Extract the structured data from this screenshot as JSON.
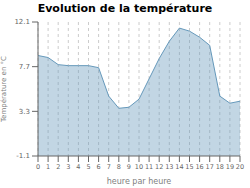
{
  "chart_data": {
    "type": "area",
    "title": "Evolution de la température",
    "xlabel": "heure par heure",
    "ylabel": "Température en °C",
    "x": [
      0,
      1,
      2,
      3,
      4,
      5,
      6,
      7,
      8,
      9,
      10,
      11,
      12,
      13,
      14,
      15,
      16,
      17,
      18,
      19,
      20
    ],
    "values": [
      8.8,
      8.6,
      7.9,
      7.8,
      7.8,
      7.8,
      7.6,
      4.8,
      3.6,
      3.7,
      4.5,
      6.5,
      8.5,
      10.2,
      11.5,
      11.2,
      10.6,
      9.8,
      4.8,
      4.1,
      4.3
    ],
    "color": "#6699bb",
    "xlim": [
      0,
      20
    ],
    "xticks": [
      0,
      1,
      2,
      3,
      4,
      5,
      6,
      7,
      8,
      9,
      10,
      11,
      12,
      13,
      14,
      15,
      16,
      17,
      18,
      19,
      20
    ],
    "ylim": [
      -1.1,
      12.1
    ],
    "yticks": [
      -1.1,
      3.3,
      7.7,
      12.1
    ],
    "grid": "x"
  }
}
